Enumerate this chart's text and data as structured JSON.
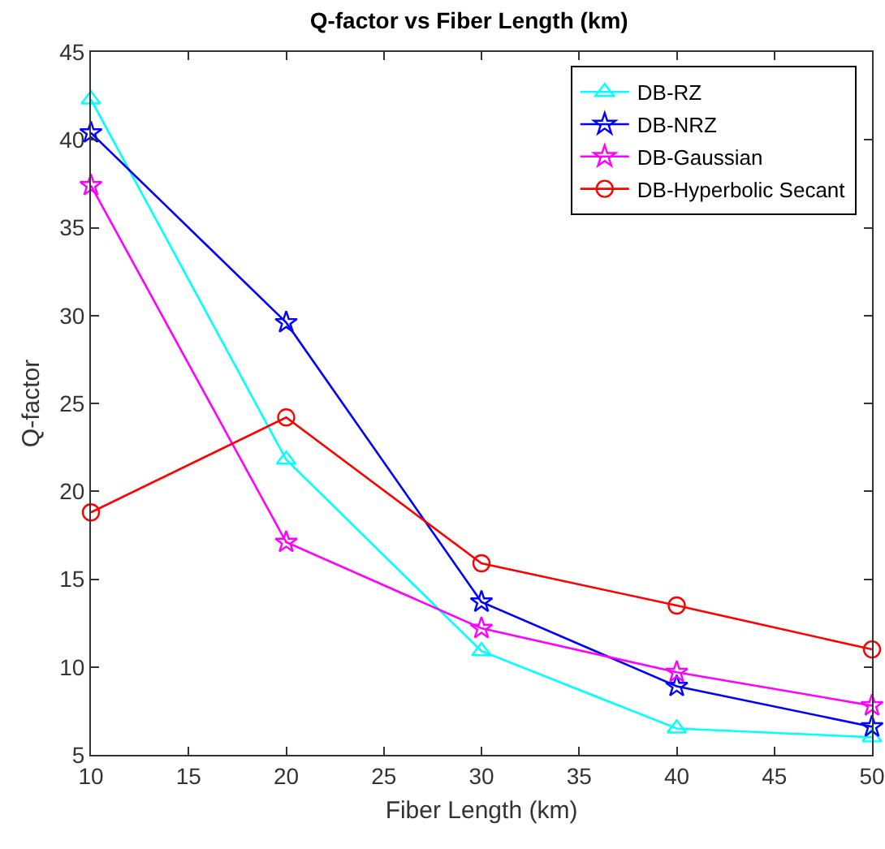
{
  "chart_data": {
    "type": "line",
    "title": "Q-factor vs Fiber Length (km)",
    "xlabel": "Fiber Length (km)",
    "ylabel": "Q-factor",
    "x": [
      10,
      20,
      30,
      40,
      50
    ],
    "series": [
      {
        "name": "DB-RZ",
        "color": "#00ffff",
        "marker": "triangle",
        "values": [
          42.3,
          21.8,
          10.9,
          6.5,
          6.0
        ]
      },
      {
        "name": "DB-NRZ",
        "color": "#0000ff",
        "marker": "star",
        "values": [
          40.4,
          29.6,
          13.7,
          8.9,
          6.6
        ]
      },
      {
        "name": "DB-Gaussian",
        "color": "#ff00ff",
        "marker": "star",
        "values": [
          37.4,
          17.1,
          12.2,
          9.7,
          7.8
        ]
      },
      {
        "name": "DB-Hyperbolic Secant",
        "color": "#ff0000",
        "marker": "circle",
        "values": [
          18.8,
          24.2,
          15.9,
          13.5,
          11.0
        ]
      }
    ],
    "xlim": [
      10,
      50
    ],
    "xticks": [
      10,
      15,
      20,
      25,
      30,
      35,
      40,
      45,
      50
    ],
    "ylim": [
      5,
      45
    ],
    "yticks": [
      5,
      10,
      15,
      20,
      25,
      30,
      35,
      40,
      45
    ],
    "grid": false,
    "legend": "top right",
    "line_style": "solid"
  }
}
